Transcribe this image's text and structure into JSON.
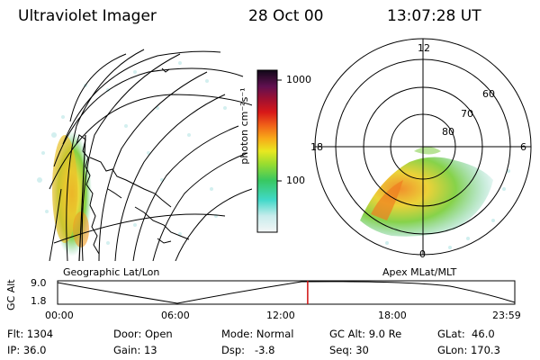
{
  "header": {
    "title": "Ultraviolet Imager",
    "date": "28 Oct 00",
    "time": "13:07:28 UT"
  },
  "colorbar": {
    "unit_label": "photon cm⁻²s⁻¹",
    "ticks": [
      "1000",
      "100"
    ]
  },
  "panels": {
    "left_label": "Geographic Lat/Lon",
    "right_label": "Apex MLat/MLT"
  },
  "polar_plot": {
    "mlt_labels": [
      "12",
      "18",
      "6",
      "0"
    ],
    "mlat_labels": [
      "60",
      "70",
      "80"
    ]
  },
  "altitude_timeline": {
    "y_label": "GC Alt",
    "y_ticks": [
      "9.0",
      "1.8"
    ],
    "x_ticks": [
      "00:00",
      "06:00",
      "12:00",
      "18:00",
      "23:59"
    ],
    "cursor_time_fraction": 0.547
  },
  "status": {
    "flt": "Flt: 1304",
    "ip": "IP: 36.0",
    "door": "Door: Open",
    "gain": "Gain: 13",
    "mode": "Mode: Normal",
    "dsp": "Dsp:   -3.8",
    "gc_alt": "GC Alt: 9.0 Re",
    "seq": "Seq: 30",
    "glat": "GLat:  46.0",
    "glon": "GLon: 170.3"
  },
  "colors": {
    "cursor": "#d01010",
    "grid": "#000000"
  }
}
